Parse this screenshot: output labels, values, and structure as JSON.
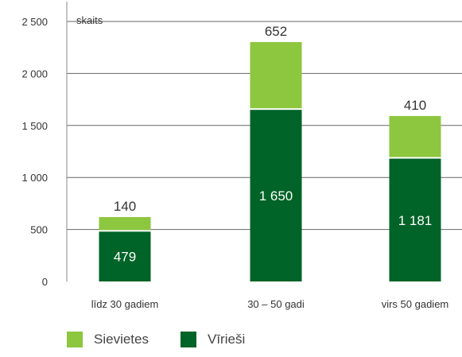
{
  "chart_data": {
    "type": "bar",
    "stacked": true,
    "unit_label": "skaits",
    "categories": [
      "līdz 30 gadiem",
      "30 – 50 gadi",
      "virs 50 gadiem"
    ],
    "series": [
      {
        "name": "Vīrieši",
        "values": [
          479,
          1650,
          1181
        ],
        "value_labels": [
          "479",
          "1 650",
          "1 181"
        ],
        "color": "#006327"
      },
      {
        "name": "Sievietes",
        "values": [
          140,
          652,
          410
        ],
        "value_labels": [
          "140",
          "652",
          "410"
        ],
        "color": "#8dc63f"
      }
    ],
    "ylim": [
      0,
      2500
    ],
    "yticks": [
      0,
      500,
      1000,
      1500,
      2000,
      2500
    ],
    "ytick_labels": [
      "0",
      "500",
      "1 000",
      "1 500",
      "2 000",
      "2 500"
    ],
    "grid": true,
    "legend_position": "bottom-left",
    "legend": [
      {
        "label": "Sievietes",
        "color": "#8dc63f"
      },
      {
        "label": "Vīrieši",
        "color": "#006327"
      }
    ]
  }
}
